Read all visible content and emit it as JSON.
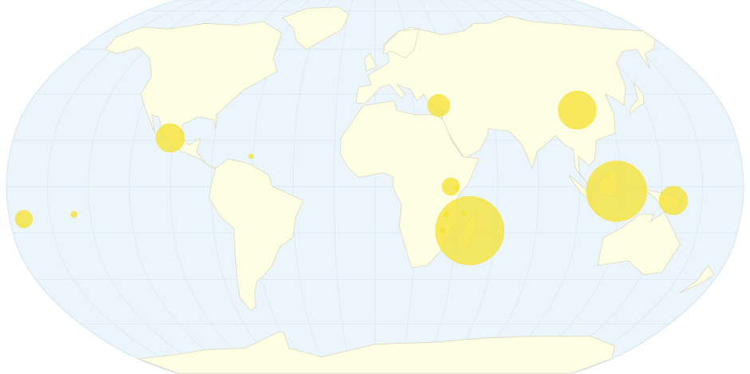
{
  "map": {
    "projection": "robinson",
    "colors": {
      "ocean": "#ecf5fc",
      "graticule": "#d6e8f4",
      "outline": "#cfe2ef",
      "land": "#fefee4",
      "border": "#d9d9c0",
      "bubble": "#f5e12f"
    },
    "bubbles": [
      {
        "lon": -102,
        "lat": 21,
        "value": 18
      },
      {
        "lon": -61,
        "lat": 13,
        "value": 3
      },
      {
        "lon": -173,
        "lat": -14,
        "value": 11
      },
      {
        "lon": -148,
        "lat": -12,
        "value": 4
      },
      {
        "lon": 33,
        "lat": 35,
        "value": 14
      },
      {
        "lon": 104,
        "lat": 33,
        "value": 24
      },
      {
        "lon": 37,
        "lat": 0,
        "value": 11
      },
      {
        "lon": 39.5,
        "lat": -0.5,
        "value": 3
      },
      {
        "lon": 47,
        "lat": -19,
        "value": 43
      },
      {
        "lon": 43.5,
        "lat": -11.5,
        "value": 3
      },
      {
        "lon": 35,
        "lat": -12,
        "value": 3
      },
      {
        "lon": 33.5,
        "lat": -19,
        "value": 3
      },
      {
        "lon": 118,
        "lat": -2,
        "value": 38
      },
      {
        "lon": 146,
        "lat": -6,
        "value": 18
      }
    ]
  }
}
